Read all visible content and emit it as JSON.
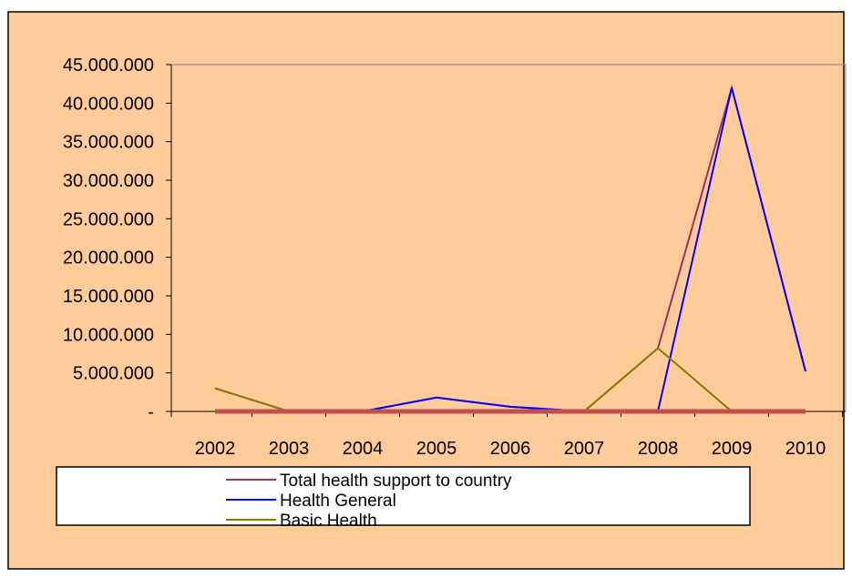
{
  "colors": {
    "background": "#FFCC99",
    "frame": "#000000",
    "plot_border": "#808080",
    "total_health": "#993366",
    "health_general": "#0000FF",
    "basic_health": "#808000",
    "baseline": "#C0504D"
  },
  "chart_data": {
    "type": "line",
    "title": "",
    "xlabel": "",
    "ylabel": "",
    "categories": [
      "2002",
      "2003",
      "2004",
      "2005",
      "2006",
      "2007",
      "2008",
      "2009",
      "2010"
    ],
    "y_ticks": [
      0,
      5000000,
      10000000,
      15000000,
      20000000,
      25000000,
      30000000,
      35000000,
      40000000,
      45000000
    ],
    "y_tick_labels": [
      "-",
      "5.000.000",
      "10.000.000",
      "15.000.000",
      "20.000.000",
      "25.000.000",
      "30.000.000",
      "35.000.000",
      "40.000.000",
      "45.000.000"
    ],
    "ylim": [
      0,
      45000000
    ],
    "grid": false,
    "legend_position": "bottom",
    "series": [
      {
        "name": "Total health support to country",
        "color_key": "total_health",
        "values": [
          3000000,
          0,
          0,
          1800000,
          600000,
          0,
          8200000,
          42000000,
          5200000
        ]
      },
      {
        "name": "Health General",
        "color_key": "health_general",
        "values": [
          0,
          0,
          0,
          1800000,
          600000,
          0,
          0,
          42000000,
          5200000
        ]
      },
      {
        "name": "Basic Health",
        "color_key": "basic_health",
        "values": [
          3000000,
          0,
          0,
          0,
          0,
          0,
          8200000,
          0,
          0
        ]
      }
    ],
    "baseline_series": {
      "color_key": "baseline",
      "values": [
        0,
        0,
        0,
        0,
        0,
        0,
        0,
        0,
        0
      ]
    }
  }
}
